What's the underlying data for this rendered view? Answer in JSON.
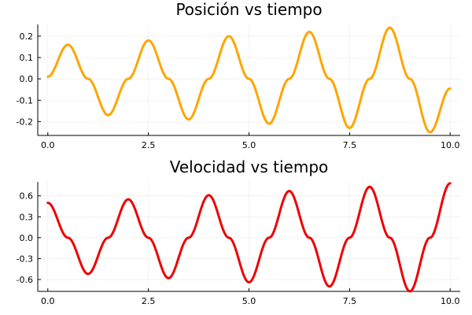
{
  "chart_data": [
    {
      "type": "line",
      "title": "Posición vs tiempo",
      "xlabel": "",
      "ylabel": "",
      "xlim": [
        -0.25,
        10.25
      ],
      "ylim": [
        -0.265,
        0.255
      ],
      "xticks": [
        0,
        2.5,
        5,
        7.5,
        10
      ],
      "xtick_labels": [
        "0.0",
        "2.5",
        "5.0",
        "7.5",
        "10.0"
      ],
      "yticks": [
        -0.2,
        -0.1,
        0,
        0.1,
        0.2
      ],
      "ytick_labels": [
        "-0.2",
        "-0.1",
        "0.0",
        "0.1",
        "0.2"
      ],
      "grid": true,
      "legend": "none",
      "series": [
        {
          "color": "#FFA500",
          "x": [
            0,
            0.5,
            1,
            1.5,
            2,
            2.5,
            3,
            3.5,
            4,
            4.5,
            5,
            5.5,
            6,
            6.5,
            7,
            7.5,
            8,
            8.5,
            9,
            9.5,
            10
          ],
          "y": [
            0.01,
            0.16,
            0.0,
            -0.17,
            0.0,
            0.18,
            0.0,
            -0.19,
            0.0,
            0.2,
            0.0,
            -0.21,
            0.0,
            0.22,
            0.0,
            -0.23,
            0.0,
            0.24,
            0.0,
            -0.25,
            -0.045
          ]
        }
      ]
    },
    {
      "type": "line",
      "title": "Velocidad vs tiempo",
      "xlabel": "",
      "ylabel": "",
      "xlim": [
        -0.25,
        10.25
      ],
      "ylim": [
        -0.77,
        0.8
      ],
      "xticks": [
        0,
        2.5,
        5,
        7.5,
        10
      ],
      "xtick_labels": [
        "0.0",
        "2.5",
        "5.0",
        "7.5",
        "10.0"
      ],
      "yticks": [
        -0.6,
        -0.3,
        0,
        0.3,
        0.6
      ],
      "ytick_labels": [
        "-0.6",
        "-0.3",
        "0.0",
        "0.3",
        "0.6"
      ],
      "grid": true,
      "legend": "none",
      "series": [
        {
          "color": "#EE0000",
          "x": [
            0,
            0.5,
            1,
            1.5,
            2,
            2.5,
            3,
            3.5,
            4,
            4.5,
            5,
            5.5,
            6,
            6.5,
            7,
            7.5,
            8,
            8.5,
            9,
            9.5,
            10
          ],
          "y": [
            0.5,
            0.0,
            -0.52,
            0.0,
            0.55,
            0.0,
            -0.58,
            0.0,
            0.61,
            0.0,
            -0.64,
            0.0,
            0.67,
            0.0,
            -0.7,
            0.0,
            0.73,
            0.0,
            -0.77,
            0.0,
            0.78
          ]
        }
      ]
    }
  ]
}
